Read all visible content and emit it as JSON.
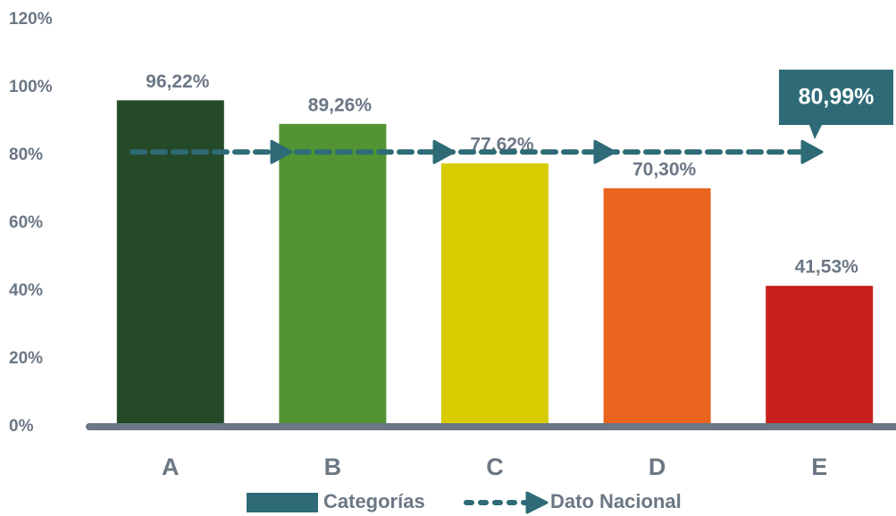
{
  "chart_data": {
    "type": "bar",
    "categories": [
      "A",
      "B",
      "C",
      "D",
      "E"
    ],
    "values": [
      96.22,
      89.26,
      77.62,
      70.3,
      41.53
    ],
    "value_labels": [
      "96,22%",
      "89,26%",
      "77,62%",
      "70,30%",
      "41,53%"
    ],
    "colors": [
      "#244a28",
      "#529433",
      "#d8cb00",
      "#e8641f",
      "#c81f1c"
    ],
    "ylim": [
      0,
      120
    ],
    "yticks": [
      {
        "value": 0,
        "label": "0%"
      },
      {
        "value": 20,
        "label": "20%"
      },
      {
        "value": 40,
        "label": "40%"
      },
      {
        "value": 60,
        "label": "60%"
      },
      {
        "value": 80,
        "label": "80%"
      },
      {
        "value": 100,
        "label": "100%"
      },
      {
        "value": 120,
        "label": "120%"
      }
    ],
    "legend_label": "Categorías",
    "legend_color": "#2e6b77",
    "reference": {
      "name": "Dato Nacional",
      "value": 80.99,
      "value_label": "80,99%",
      "color": "#2e6b77"
    }
  }
}
